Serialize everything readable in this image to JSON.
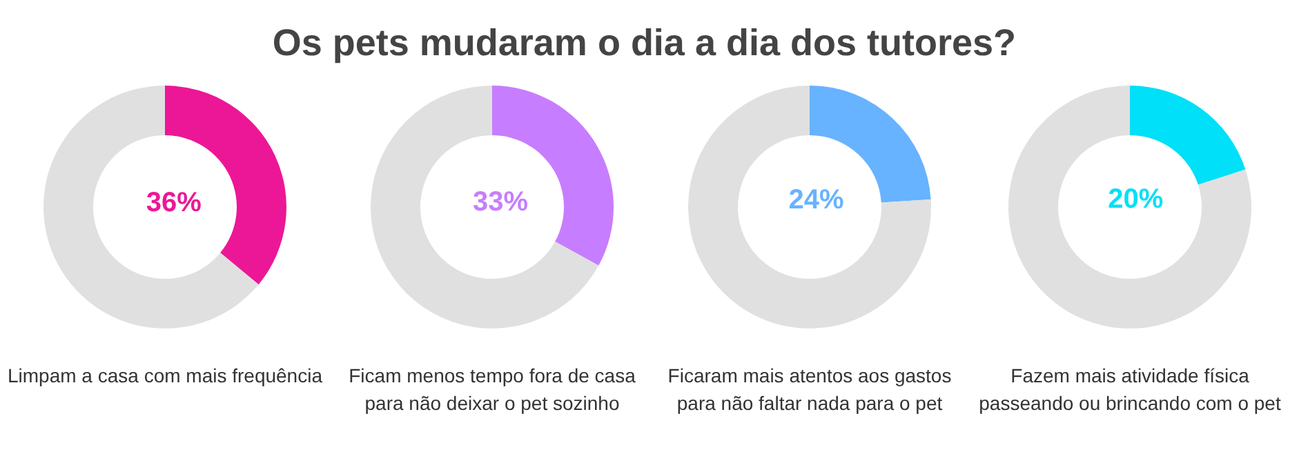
{
  "chart_data": [
    {
      "type": "donut",
      "title": "Os pets mudaram o dia a dia dos tutores?",
      "xlabel": "Limpam a casa com mais frequência",
      "categories": [
        null,
        null
      ],
      "values": [
        36,
        64
      ],
      "colors": [
        "#ec1796",
        "#e0e0e0"
      ],
      "value_labels": [
        "36%",
        null
      ]
    },
    {
      "type": "donut",
      "xlabel": "Ficam menos tempo fora de casa para não deixar o pet sozinho",
      "categories": [
        null,
        null
      ],
      "values": [
        33,
        67
      ],
      "colors": [
        "#c77dff",
        "#e0e0e0"
      ],
      "value_labels": [
        "33%",
        null
      ]
    },
    {
      "type": "donut",
      "xlabel": "Ficaram mais atentos aos gastos para não faltar nada para o pet",
      "categories": [
        null,
        null
      ],
      "values": [
        24,
        76
      ],
      "colors": [
        "#67b3ff",
        "#e0e0e0"
      ],
      "value_labels": [
        "24%",
        null
      ]
    },
    {
      "type": "donut",
      "xlabel": "Fazem mais atividade física passeando ou brincando com o pet",
      "categories": [
        null,
        null
      ],
      "values": [
        20,
        80
      ],
      "colors": [
        "#00e0f8",
        "#e0e0e0"
      ],
      "value_labels": [
        "20%",
        null
      ]
    }
  ]
}
